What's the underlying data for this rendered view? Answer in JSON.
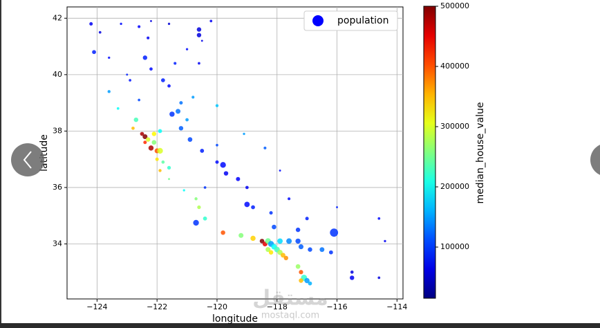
{
  "chart_data": {
    "type": "scatter",
    "xlabel": "longitude",
    "ylabel": "latitude",
    "xlim": [
      -125,
      -113.8
    ],
    "ylim": [
      32.05,
      42.4
    ],
    "xticks": [
      {
        "value": -124,
        "label": "−124"
      },
      {
        "value": -122,
        "label": "−122"
      },
      {
        "value": -120,
        "label": "−120"
      },
      {
        "value": -118,
        "label": "−118"
      },
      {
        "value": -116,
        "label": "−116"
      },
      {
        "value": -114,
        "label": "−114"
      }
    ],
    "yticks": [
      34,
      36,
      38,
      40,
      42
    ],
    "grid": true,
    "legend": "upper right",
    "series": [
      {
        "name": "population",
        "color": "#0000ff",
        "x": [
          -124.2,
          -123.9,
          -123.2,
          -122.6,
          -122.2,
          -121.6,
          -120.6,
          -120.2,
          -124.1,
          -123.6,
          -122.4,
          -122.2,
          -121.4,
          -120.6,
          -121.8,
          -121.6,
          -120.8,
          -121.2,
          -122.6,
          -123.6,
          -123.3,
          -122.7,
          -122.8,
          -122.5,
          -122.4,
          -122.3,
          -122.1,
          -122.2,
          -122.0,
          -121.9,
          -122.4,
          -122.1,
          -121.9,
          -122.0,
          -121.8,
          -121.6,
          -121.9,
          -121.5,
          -121.3,
          -121.0,
          -121.2,
          -120.9,
          -120.5,
          -120.0,
          -119.8,
          -119.7,
          -119.3,
          -119.0,
          -119.0,
          -118.8,
          -118.2,
          -117.6,
          -120.6,
          -120.4,
          -120.7,
          -119.8,
          -119.2,
          -118.8,
          -118.5,
          -118.4,
          -118.3,
          -118.2,
          -118.1,
          -118.0,
          -118.3,
          -118.2,
          -117.9,
          -117.8,
          -117.7,
          -117.9,
          -117.6,
          -117.3,
          -117.2,
          -116.9,
          -116.5,
          -116.2,
          -117.3,
          -117.2,
          -117.1,
          -117.0,
          -117.2,
          -116.9,
          -116.1,
          -115.5,
          -115.5,
          -114.6,
          -114.6,
          -114.4,
          -116.0,
          -117.0,
          -117.3,
          -118.1,
          -118.4,
          -119.1,
          -117.9,
          -120.0,
          -120.7,
          -121.1,
          -121.6,
          -120.0,
          -120.4,
          -122.3,
          -123.0,
          -122.9,
          -121.0,
          -120.5,
          -120.6
        ],
        "y": [
          41.8,
          41.5,
          41.8,
          41.7,
          41.9,
          41.8,
          41.4,
          41.9,
          40.8,
          40.6,
          40.6,
          40.2,
          40.4,
          40.4,
          39.8,
          39.6,
          39.2,
          39.0,
          39.1,
          39.4,
          38.8,
          38.4,
          38.1,
          37.9,
          37.8,
          37.7,
          37.6,
          37.4,
          37.3,
          37.3,
          37.6,
          37.9,
          38.0,
          37.0,
          36.9,
          36.7,
          36.6,
          38.6,
          38.7,
          38.4,
          38.1,
          37.7,
          37.3,
          37.5,
          36.8,
          36.5,
          36.3,
          36.0,
          35.4,
          35.3,
          35.1,
          35.6,
          35.3,
          34.9,
          35.6,
          34.4,
          34.3,
          34.2,
          34.1,
          34.0,
          34.1,
          34.0,
          33.9,
          33.8,
          33.8,
          33.7,
          33.7,
          33.6,
          33.5,
          34.1,
          34.1,
          34.1,
          33.9,
          33.8,
          33.8,
          33.7,
          33.2,
          33.0,
          32.8,
          32.7,
          32.7,
          32.6,
          34.4,
          32.8,
          33.0,
          32.8,
          34.9,
          34.1,
          35.3,
          34.9,
          34.5,
          34.6,
          37.4,
          37.9,
          36.6,
          38.9,
          34.75,
          35.9,
          36.3,
          36.9,
          36.0,
          41.3,
          40.0,
          39.8,
          40.9,
          41.2,
          41.6
        ],
        "sizes": [
          900,
          500,
          400,
          600,
          300,
          400,
          1500,
          500,
          1200,
          400,
          1500,
          800,
          600,
          500,
          1200,
          800,
          600,
          900,
          500,
          700,
          500,
          1500,
          800,
          1200,
          1800,
          1500,
          1600,
          2000,
          1800,
          2500,
          900,
          1500,
          1200,
          900,
          800,
          1000,
          700,
          2000,
          1800,
          800,
          1500,
          1600,
          1200,
          500,
          2500,
          1500,
          1300,
          800,
          2200,
          1200,
          900,
          600,
          1000,
          1200,
          700,
          1500,
          1800,
          2000,
          1600,
          1800,
          2500,
          2600,
          2200,
          2400,
          1800,
          1500,
          2000,
          1700,
          1500,
          2200,
          2300,
          2000,
          1800,
          1500,
          1700,
          1200,
          1600,
          1400,
          2800,
          2000,
          1500,
          1200,
          5000,
          1500,
          800,
          500,
          500,
          400,
          300,
          900,
          1500,
          1600,
          600,
          400,
          300,
          700,
          2500,
          400,
          300,
          900,
          500,
          600,
          300,
          500,
          400,
          300,
          1500
        ],
        "values": [
          70000,
          60000,
          80000,
          75000,
          60000,
          55000,
          60000,
          70000,
          90000,
          80000,
          90000,
          80000,
          90000,
          70000,
          90000,
          80000,
          150000,
          130000,
          110000,
          150000,
          200000,
          230000,
          350000,
          480000,
          500000,
          300000,
          260000,
          480000,
          400000,
          300000,
          420000,
          320000,
          200000,
          330000,
          240000,
          220000,
          350000,
          100000,
          130000,
          150000,
          120000,
          110000,
          90000,
          110000,
          80000,
          70000,
          75000,
          70000,
          80000,
          90000,
          100000,
          80000,
          280000,
          220000,
          260000,
          400000,
          260000,
          340000,
          500000,
          450000,
          250000,
          150000,
          200000,
          230000,
          280000,
          330000,
          280000,
          350000,
          370000,
          180000,
          140000,
          110000,
          120000,
          110000,
          130000,
          100000,
          270000,
          400000,
          220000,
          150000,
          350000,
          160000,
          100000,
          70000,
          60000,
          60000,
          80000,
          70000,
          90000,
          90000,
          100000,
          110000,
          120000,
          150000,
          80000,
          170000,
          100000,
          200000,
          250000,
          80000,
          100000,
          70000,
          90000,
          85000,
          80000,
          65000,
          60000
        ]
      }
    ],
    "colorbar": {
      "label": "median_house_value",
      "colormap": "jet",
      "lim": [
        15000,
        500000
      ],
      "ticks": [
        100000,
        200000,
        300000,
        400000,
        500000
      ]
    },
    "watermark": [
      "مستقل",
      "mostaql.com"
    ]
  }
}
